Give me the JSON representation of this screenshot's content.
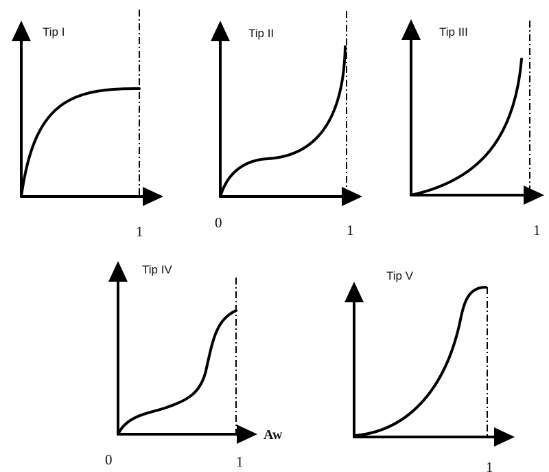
{
  "panels": [
    {
      "title": "Tip I",
      "origin_label": "",
      "end_label": "1",
      "axis_name": ""
    },
    {
      "title": "Tip II",
      "origin_label": "0",
      "end_label": "1",
      "axis_name": ""
    },
    {
      "title": "Tip III",
      "origin_label": "",
      "end_label": "1",
      "axis_name": ""
    },
    {
      "title": "Tip IV",
      "origin_label": "0",
      "end_label": "1",
      "axis_name": "Aw"
    },
    {
      "title": "Tip V",
      "origin_label": "",
      "end_label": "1",
      "axis_name": ""
    }
  ]
}
